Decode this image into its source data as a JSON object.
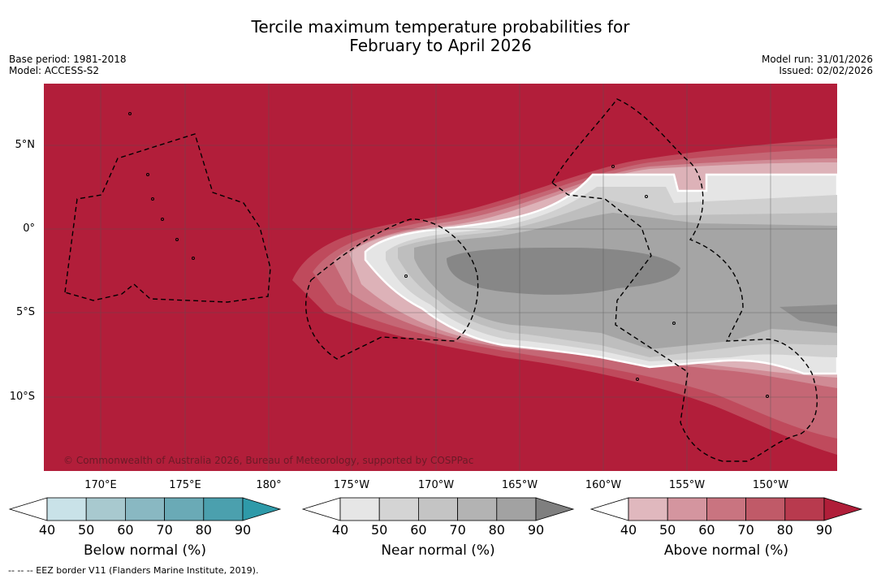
{
  "title_line1": "Tercile maximum temperature probabilities for",
  "title_line2": "February to April 2026",
  "base_period": "Base period: 1981-2018",
  "model": "Model: ACCESS-S2",
  "model_run": "Model run: 31/01/2026",
  "issued": "Issued: 02/02/2026",
  "copyright": "© Commonwealth of Australia 2026, Bureau of Meteorology, supported by COSPPac",
  "lat_labels": [
    "5°N",
    "0°",
    "5°S",
    "10°S"
  ],
  "lon_labels": [
    "170°E",
    "175°E",
    "180°",
    "175°W",
    "170°W",
    "165°W",
    "160°W",
    "155°W",
    "150°W"
  ],
  "colorbars": [
    {
      "label": "Below normal (%)",
      "ticks": [
        "40",
        "50",
        "60",
        "70",
        "80",
        "90"
      ],
      "colors": [
        "#ffffff",
        "#c9e2e8",
        "#a8c9cf",
        "#89b8c2",
        "#6aaab6",
        "#4ba0ae",
        "#2e9aa9"
      ]
    },
    {
      "label": "Near normal (%)",
      "ticks": [
        "40",
        "50",
        "60",
        "70",
        "80",
        "90"
      ],
      "colors": [
        "#ffffff",
        "#e6e6e6",
        "#d4d4d4",
        "#c4c4c4",
        "#b3b3b3",
        "#a2a2a2",
        "#7f7f7f"
      ]
    },
    {
      "label": "Above normal (%)",
      "ticks": [
        "40",
        "50",
        "60",
        "70",
        "80",
        "90"
      ],
      "colors": [
        "#ffffff",
        "#e0b8be",
        "#d4959f",
        "#c97480",
        "#c05a68",
        "#b83a4e",
        "#b01e39"
      ]
    }
  ],
  "footnote": "--  --  -- EEZ border V11 (Flanders Marine Institute, 2019).",
  "colors": {
    "above90": "#b21e3a"
  }
}
